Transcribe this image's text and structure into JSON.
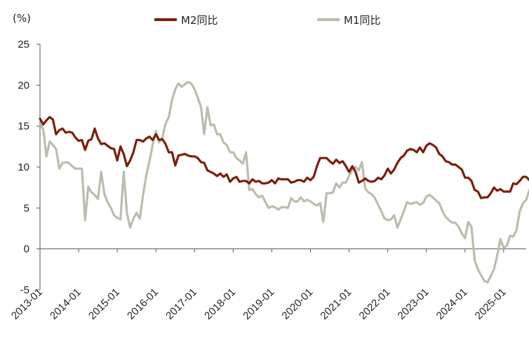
{
  "chart_data": {
    "type": "line",
    "unit_label": "(%)",
    "xlabel": "",
    "ylabel": "",
    "ylim": [
      -5,
      25
    ],
    "yticks": [
      -5,
      0,
      5,
      10,
      15,
      20,
      25
    ],
    "x_tick_labels": [
      "2013-01",
      "2014-01",
      "2015-01",
      "2016-01",
      "2017-01",
      "2018-01",
      "2019-01",
      "2020-01",
      "2021-01",
      "2022-01",
      "2023-01",
      "2024-01",
      "2025-01"
    ],
    "x_start": "2013-01",
    "x_end": "2025-08",
    "grid": false,
    "legend_position": "top-center",
    "series": [
      {
        "name": "M2同比",
        "color": "#7B1E0A",
        "values": [
          [
            0,
            15.9
          ],
          [
            1,
            15.2
          ],
          [
            2,
            15.7
          ],
          [
            3,
            16.1
          ],
          [
            4,
            15.8
          ],
          [
            5,
            14.0
          ],
          [
            6,
            14.5
          ],
          [
            7,
            14.7
          ],
          [
            8,
            14.2
          ],
          [
            9,
            14.3
          ],
          [
            10,
            14.2
          ],
          [
            11,
            13.6
          ],
          [
            12,
            13.2
          ],
          [
            13,
            13.3
          ],
          [
            14,
            12.1
          ],
          [
            15,
            13.2
          ],
          [
            16,
            13.4
          ],
          [
            17,
            14.7
          ],
          [
            18,
            13.5
          ],
          [
            19,
            12.8
          ],
          [
            20,
            12.9
          ],
          [
            21,
            12.6
          ],
          [
            22,
            12.3
          ],
          [
            23,
            12.2
          ],
          [
            24,
            10.8
          ],
          [
            25,
            12.5
          ],
          [
            26,
            11.6
          ],
          [
            27,
            10.1
          ],
          [
            28,
            10.8
          ],
          [
            29,
            11.8
          ],
          [
            30,
            13.3
          ],
          [
            31,
            13.3
          ],
          [
            32,
            13.1
          ],
          [
            33,
            13.5
          ],
          [
            34,
            13.7
          ],
          [
            35,
            13.3
          ],
          [
            36,
            14.0
          ],
          [
            37,
            13.3
          ],
          [
            38,
            13.4
          ],
          [
            39,
            12.8
          ],
          [
            40,
            11.8
          ],
          [
            41,
            11.8
          ],
          [
            42,
            10.2
          ],
          [
            43,
            11.4
          ],
          [
            44,
            11.5
          ],
          [
            45,
            11.6
          ],
          [
            46,
            11.4
          ],
          [
            47,
            11.3
          ],
          [
            48,
            11.3
          ],
          [
            49,
            11.1
          ],
          [
            50,
            10.6
          ],
          [
            51,
            10.5
          ],
          [
            52,
            9.6
          ],
          [
            53,
            9.4
          ],
          [
            54,
            9.2
          ],
          [
            55,
            8.9
          ],
          [
            56,
            9.2
          ],
          [
            57,
            8.8
          ],
          [
            58,
            9.1
          ],
          [
            59,
            8.2
          ],
          [
            60,
            8.6
          ],
          [
            61,
            8.8
          ],
          [
            62,
            8.2
          ],
          [
            63,
            8.3
          ],
          [
            64,
            8.3
          ],
          [
            65,
            8.0
          ],
          [
            66,
            8.5
          ],
          [
            67,
            8.2
          ],
          [
            68,
            8.3
          ],
          [
            69,
            8.0
          ],
          [
            70,
            8.0
          ],
          [
            71,
            8.1
          ],
          [
            72,
            8.4
          ],
          [
            73,
            8.0
          ],
          [
            74,
            8.6
          ],
          [
            75,
            8.5
          ],
          [
            76,
            8.5
          ],
          [
            77,
            8.5
          ],
          [
            78,
            8.1
          ],
          [
            79,
            8.2
          ],
          [
            80,
            8.4
          ],
          [
            81,
            8.4
          ],
          [
            82,
            8.2
          ],
          [
            83,
            8.7
          ],
          [
            84,
            8.4
          ],
          [
            85,
            8.8
          ],
          [
            86,
            10.1
          ],
          [
            87,
            11.1
          ],
          [
            88,
            11.1
          ],
          [
            89,
            11.1
          ],
          [
            90,
            10.7
          ],
          [
            91,
            10.4
          ],
          [
            92,
            10.9
          ],
          [
            93,
            10.5
          ],
          [
            94,
            10.7
          ],
          [
            95,
            10.1
          ],
          [
            96,
            9.4
          ],
          [
            97,
            10.1
          ],
          [
            98,
            9.4
          ],
          [
            99,
            8.1
          ],
          [
            100,
            8.3
          ],
          [
            101,
            8.6
          ],
          [
            102,
            8.3
          ],
          [
            103,
            8.2
          ],
          [
            104,
            8.3
          ],
          [
            105,
            8.7
          ],
          [
            106,
            8.5
          ],
          [
            107,
            9.0
          ],
          [
            108,
            9.8
          ],
          [
            109,
            9.2
          ],
          [
            110,
            9.7
          ],
          [
            111,
            10.5
          ],
          [
            112,
            11.1
          ],
          [
            113,
            11.4
          ],
          [
            114,
            12.0
          ],
          [
            115,
            12.2
          ],
          [
            116,
            12.1
          ],
          [
            117,
            11.8
          ],
          [
            118,
            12.4
          ],
          [
            119,
            11.8
          ],
          [
            120,
            12.6
          ],
          [
            121,
            12.9
          ],
          [
            122,
            12.7
          ],
          [
            123,
            12.4
          ],
          [
            124,
            11.6
          ],
          [
            125,
            11.3
          ],
          [
            126,
            10.7
          ],
          [
            127,
            10.6
          ],
          [
            128,
            10.3
          ],
          [
            129,
            10.3
          ],
          [
            130,
            10.0
          ],
          [
            131,
            9.7
          ],
          [
            132,
            8.7
          ],
          [
            133,
            8.7
          ],
          [
            134,
            8.3
          ],
          [
            135,
            7.2
          ],
          [
            136,
            7.0
          ],
          [
            137,
            6.2
          ],
          [
            138,
            6.3
          ],
          [
            139,
            6.3
          ],
          [
            140,
            6.8
          ],
          [
            141,
            7.5
          ],
          [
            142,
            7.1
          ],
          [
            143,
            7.3
          ],
          [
            144,
            7.0
          ],
          [
            145,
            7.0
          ],
          [
            146,
            7.0
          ],
          [
            147,
            8.0
          ],
          [
            148,
            7.9
          ],
          [
            149,
            8.3
          ],
          [
            150,
            8.8
          ],
          [
            151,
            8.8
          ],
          [
            152,
            8.4
          ]
        ]
      },
      {
        "name": "M1同比",
        "color": "#BDBCAC",
        "values": [
          [
            0,
            15.3
          ],
          [
            1,
            14.6
          ],
          [
            2,
            11.3
          ],
          [
            3,
            13.1
          ],
          [
            4,
            12.7
          ],
          [
            5,
            12.2
          ],
          [
            6,
            9.8
          ],
          [
            7,
            10.5
          ],
          [
            8,
            10.6
          ],
          [
            9,
            10.5
          ],
          [
            10,
            10.1
          ],
          [
            11,
            9.8
          ],
          [
            12,
            9.8
          ],
          [
            13,
            9.8
          ],
          [
            14,
            3.5
          ],
          [
            15,
            7.6
          ],
          [
            16,
            6.9
          ],
          [
            17,
            6.6
          ],
          [
            18,
            6.1
          ],
          [
            19,
            9.4
          ],
          [
            20,
            6.7
          ],
          [
            21,
            5.7
          ],
          [
            22,
            5.0
          ],
          [
            23,
            4.1
          ],
          [
            24,
            3.8
          ],
          [
            25,
            3.6
          ],
          [
            26,
            9.4
          ],
          [
            27,
            4.4
          ],
          [
            28,
            2.6
          ],
          [
            29,
            3.7
          ],
          [
            30,
            4.4
          ],
          [
            31,
            3.7
          ],
          [
            32,
            6.6
          ],
          [
            33,
            9.0
          ],
          [
            34,
            10.7
          ],
          [
            35,
            12.7
          ],
          [
            36,
            14.4
          ],
          [
            37,
            13.0
          ],
          [
            38,
            13.6
          ],
          [
            39,
            15.3
          ],
          [
            40,
            16.1
          ],
          [
            41,
            18.2
          ],
          [
            42,
            19.5
          ],
          [
            43,
            20.2
          ],
          [
            44,
            19.8
          ],
          [
            45,
            20.1
          ],
          [
            46,
            20.4
          ],
          [
            47,
            20.2
          ],
          [
            48,
            19.5
          ],
          [
            49,
            18.5
          ],
          [
            50,
            17.3
          ],
          [
            51,
            14.0
          ],
          [
            52,
            17.3
          ],
          [
            53,
            15.1
          ],
          [
            54,
            15.2
          ],
          [
            55,
            14.0
          ],
          [
            56,
            14.0
          ],
          [
            57,
            13.0
          ],
          [
            58,
            12.7
          ],
          [
            59,
            11.8
          ],
          [
            60,
            11.8
          ],
          [
            61,
            11.1
          ],
          [
            62,
            10.8
          ],
          [
            63,
            10.4
          ],
          [
            64,
            11.8
          ],
          [
            65,
            7.2
          ],
          [
            66,
            7.3
          ],
          [
            67,
            6.7
          ],
          [
            68,
            6.3
          ],
          [
            69,
            6.5
          ],
          [
            70,
            5.7
          ],
          [
            71,
            5.0
          ],
          [
            72,
            5.2
          ],
          [
            73,
            5.1
          ],
          [
            74,
            4.8
          ],
          [
            75,
            5.1
          ],
          [
            76,
            5.1
          ],
          [
            77,
            5.0
          ],
          [
            78,
            6.2
          ],
          [
            79,
            5.8
          ],
          [
            80,
            5.8
          ],
          [
            81,
            6.3
          ],
          [
            82,
            5.8
          ],
          [
            83,
            6.0
          ],
          [
            84,
            5.8
          ],
          [
            85,
            5.5
          ],
          [
            86,
            5.3
          ],
          [
            87,
            5.6
          ],
          [
            88,
            3.3
          ],
          [
            89,
            6.8
          ],
          [
            90,
            6.8
          ],
          [
            91,
            6.9
          ],
          [
            92,
            8.0
          ],
          [
            93,
            7.5
          ],
          [
            94,
            8.1
          ],
          [
            95,
            8.1
          ],
          [
            96,
            8.9
          ],
          [
            97,
            9.7
          ],
          [
            98,
            10.0
          ],
          [
            99,
            9.6
          ],
          [
            100,
            10.6
          ],
          [
            101,
            7.4
          ],
          [
            102,
            6.9
          ],
          [
            103,
            6.7
          ],
          [
            104,
            6.2
          ],
          [
            105,
            5.4
          ],
          [
            106,
            4.6
          ],
          [
            107,
            3.7
          ],
          [
            108,
            3.5
          ],
          [
            109,
            3.6
          ],
          [
            110,
            4.1
          ],
          [
            111,
            2.6
          ],
          [
            112,
            3.6
          ],
          [
            113,
            4.6
          ],
          [
            114,
            5.7
          ],
          [
            115,
            5.5
          ],
          [
            116,
            5.6
          ],
          [
            117,
            5.7
          ],
          [
            118,
            5.4
          ],
          [
            119,
            5.6
          ],
          [
            120,
            6.4
          ],
          [
            121,
            6.6
          ],
          [
            122,
            6.3
          ],
          [
            123,
            5.9
          ],
          [
            124,
            5.6
          ],
          [
            125,
            4.6
          ],
          [
            126,
            3.9
          ],
          [
            127,
            3.5
          ],
          [
            128,
            3.2
          ],
          [
            129,
            3.2
          ],
          [
            130,
            2.7
          ],
          [
            131,
            1.9
          ],
          [
            132,
            1.3
          ],
          [
            133,
            3.3
          ],
          [
            134,
            2.7
          ],
          [
            135,
            -1.4
          ],
          [
            136,
            -2.5
          ],
          [
            137,
            -3.2
          ],
          [
            138,
            -3.9
          ],
          [
            139,
            -4.1
          ],
          [
            140,
            -3.3
          ],
          [
            141,
            -2.5
          ],
          [
            142,
            -0.8
          ],
          [
            143,
            1.2
          ],
          [
            144,
            0.1
          ],
          [
            145,
            0.4
          ],
          [
            146,
            1.6
          ],
          [
            147,
            1.5
          ],
          [
            148,
            2.3
          ],
          [
            149,
            4.6
          ],
          [
            150,
            5.6
          ],
          [
            151,
            6.0
          ],
          [
            152,
            7.2
          ]
        ]
      }
    ]
  }
}
